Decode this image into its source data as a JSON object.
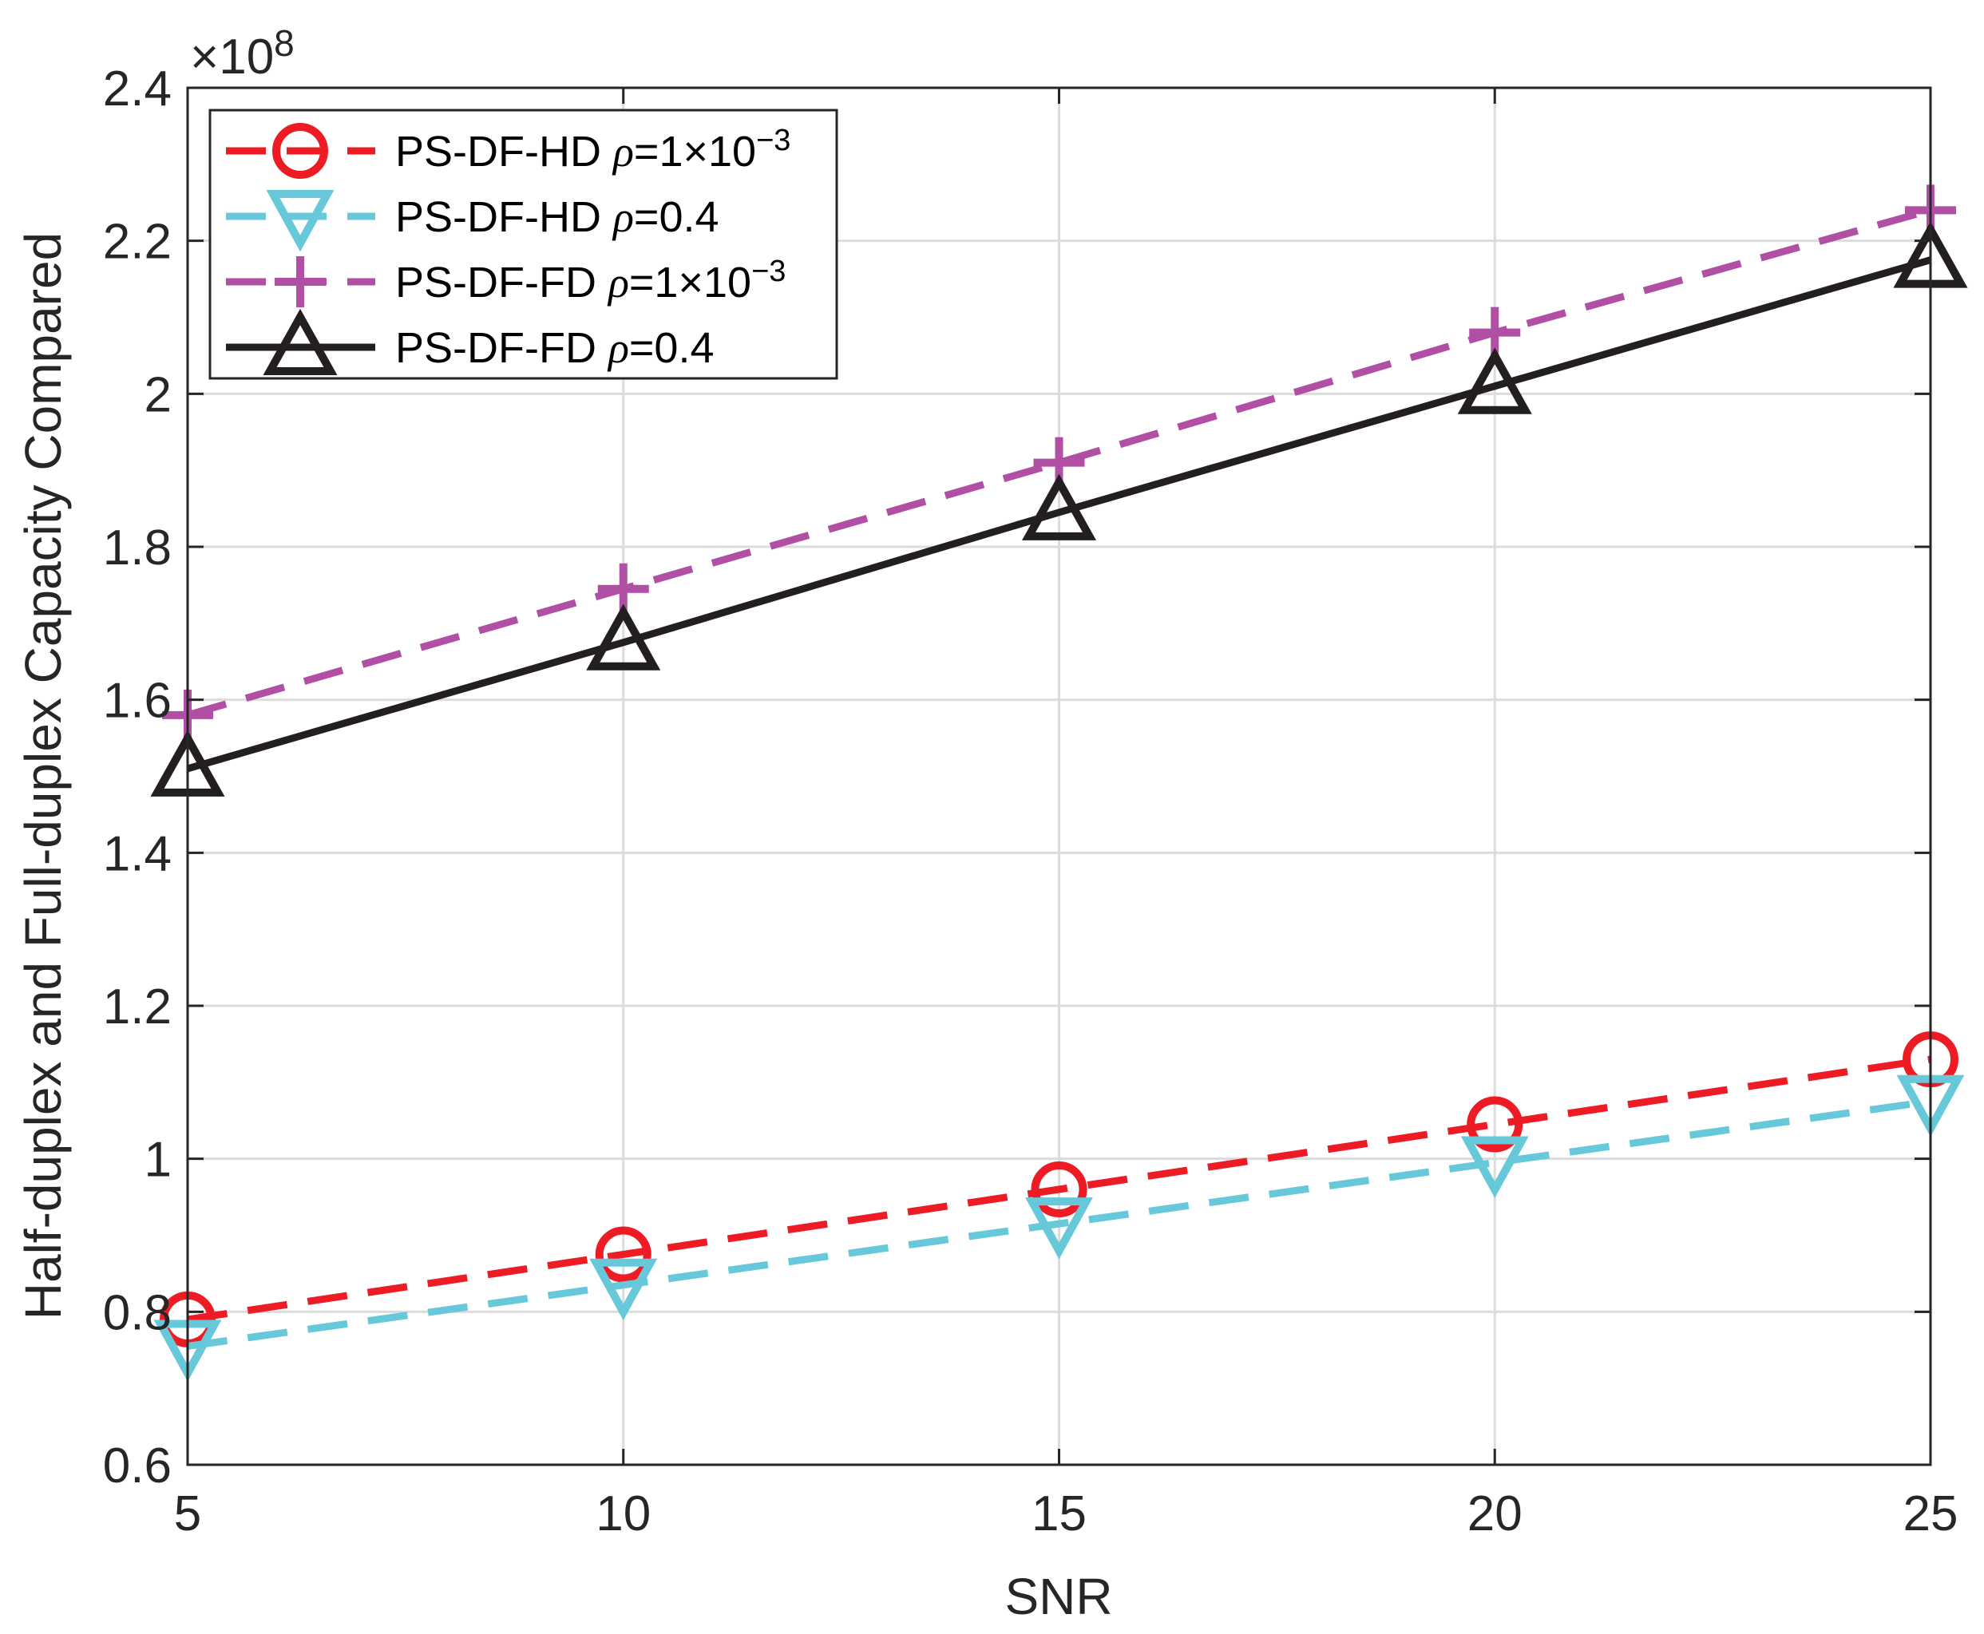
{
  "chart_data": {
    "type": "line",
    "title": "",
    "xlabel": "SNR",
    "ylabel": "Half-duplex and Full-duplex Capacity Compared",
    "x": [
      5,
      10,
      15,
      20,
      25
    ],
    "xlim": [
      5,
      25
    ],
    "ylim": [
      0.6,
      2.4
    ],
    "x_ticks": [
      5,
      10,
      15,
      20,
      25
    ],
    "y_ticks": [
      0.6,
      0.8,
      1,
      1.2,
      1.4,
      1.6,
      1.8,
      2,
      2.2,
      2.4
    ],
    "y_exponent_base": "×10",
    "y_exponent": "8",
    "grid": true,
    "legend_position": "top-left",
    "series": [
      {
        "name": "PS-DF-HD",
        "param_symbol": "ρ",
        "param_value": "=1×10",
        "param_exponent": "−3",
        "values": [
          0.79,
          0.875,
          0.96,
          1.045,
          1.13
        ],
        "color": "#ed1c24",
        "line_style": "dashed",
        "marker": "circle"
      },
      {
        "name": "PS-DF-HD",
        "param_symbol": "ρ",
        "param_value": "=0.4",
        "param_exponent": "",
        "values": [
          0.755,
          0.835,
          0.915,
          0.995,
          1.075
        ],
        "color": "#66c8d8",
        "line_style": "dashed",
        "marker": "triangle-down"
      },
      {
        "name": "PS-DF-FD",
        "param_symbol": "ρ",
        "param_value": "=1×10",
        "param_exponent": "−3",
        "values": [
          1.58,
          1.745,
          1.91,
          2.08,
          2.24
        ],
        "color": "#b04fa4",
        "line_style": "dashed",
        "marker": "plus"
      },
      {
        "name": "PS-DF-FD",
        "param_symbol": "ρ",
        "param_value": "=0.4",
        "param_exponent": "",
        "values": [
          1.51,
          1.675,
          1.845,
          2.01,
          2.175
        ],
        "color": "#231f20",
        "line_style": "solid",
        "marker": "triangle-up"
      }
    ]
  }
}
